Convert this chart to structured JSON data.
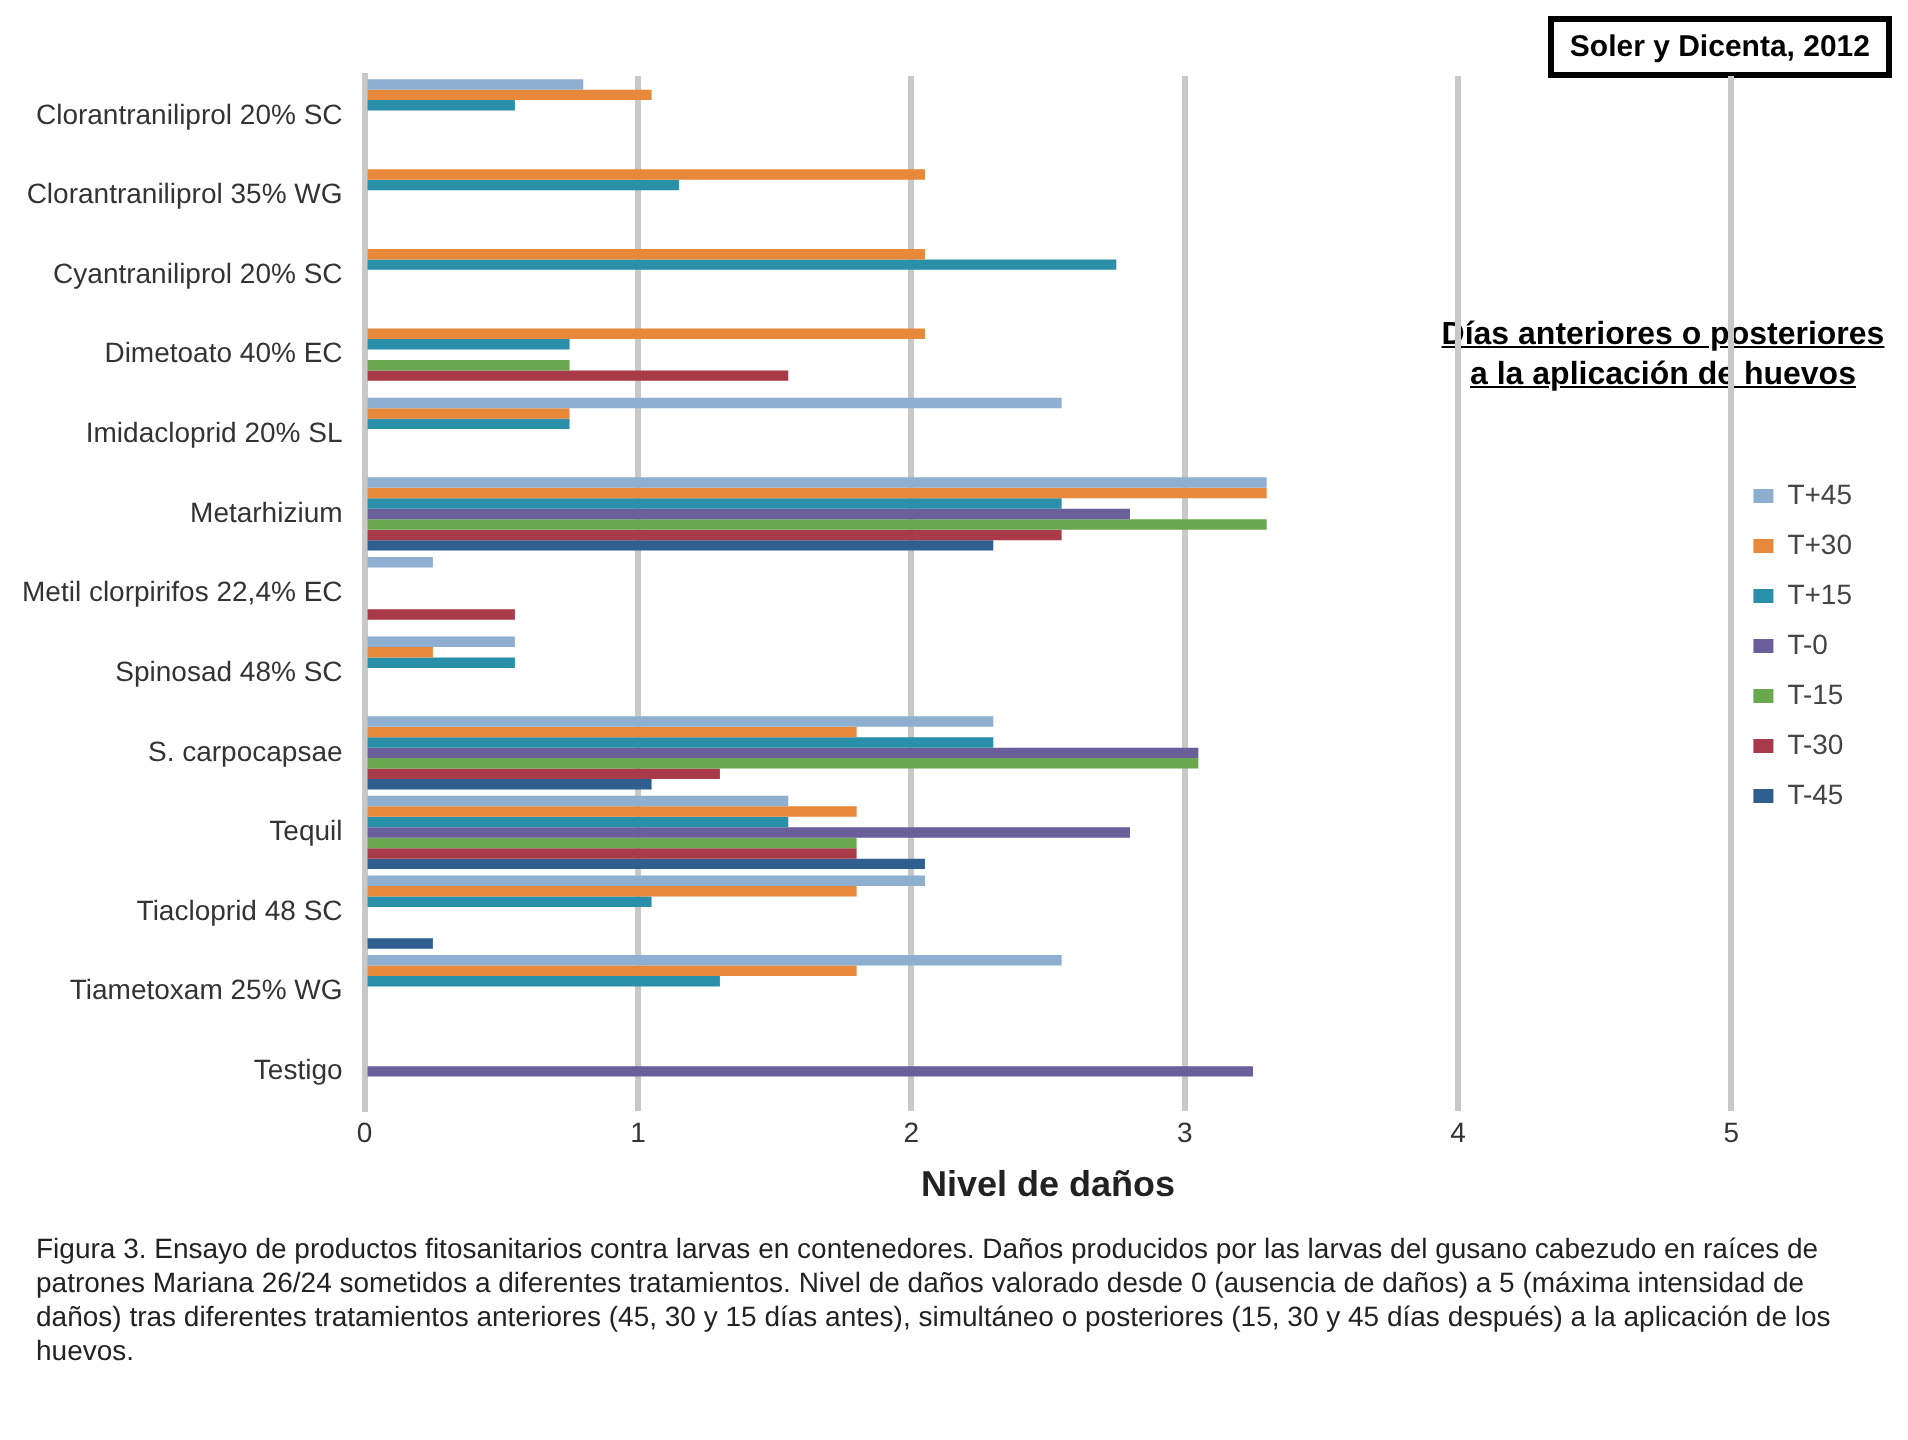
{
  "chart_data": {
    "type": "bar",
    "orientation": "horizontal",
    "xlabel": "Nivel de daños",
    "legend_title": "Días anteriores o posteriores a la aplicación de huevos",
    "legend": "right",
    "grid": "x",
    "xlim": [
      0,
      5
    ],
    "xticks": [
      0,
      1,
      2,
      3,
      4,
      5
    ],
    "categories": [
      "Clorantraniliprol 20% SC",
      "Clorantraniliprol 35% WG",
      "Cyantraniliprol 20% SC",
      "Dimetoato 40% EC",
      "Imidacloprid 20% SL",
      "Metarhizium",
      "Metil clorpirifos 22,4% EC",
      "Spinosad 48% SC",
      "S. carpocapsae",
      "Tequil",
      "Tiacloprid 48 SC",
      "Tiametoxam 25% WG",
      "Testigo"
    ],
    "series": [
      {
        "name": "T+45",
        "color": "#8fafd0",
        "values": [
          0.8,
          null,
          null,
          null,
          2.55,
          3.3,
          0.25,
          0.55,
          2.3,
          1.55,
          2.05,
          2.55,
          null
        ]
      },
      {
        "name": "T+30",
        "color": "#e8883a",
        "values": [
          1.05,
          2.05,
          2.05,
          2.05,
          0.75,
          3.3,
          null,
          0.25,
          1.8,
          1.8,
          1.8,
          1.8,
          null
        ]
      },
      {
        "name": "T+15",
        "color": "#2a8fa8",
        "values": [
          0.55,
          1.15,
          2.75,
          0.75,
          0.75,
          2.55,
          null,
          0.55,
          2.3,
          1.55,
          1.05,
          1.3,
          null
        ]
      },
      {
        "name": "T-0",
        "color": "#6a5f9a",
        "values": [
          null,
          null,
          null,
          null,
          null,
          2.8,
          null,
          null,
          3.05,
          2.8,
          null,
          null,
          3.25
        ]
      },
      {
        "name": "T-15",
        "color": "#6aa84f",
        "values": [
          null,
          null,
          null,
          0.75,
          null,
          3.3,
          null,
          null,
          3.05,
          1.8,
          null,
          null,
          null
        ]
      },
      {
        "name": "T-30",
        "color": "#a83a4a",
        "values": [
          null,
          null,
          null,
          1.55,
          null,
          2.55,
          0.55,
          null,
          1.3,
          1.8,
          null,
          null,
          null
        ]
      },
      {
        "name": "T-45",
        "color": "#2f5f8f",
        "values": [
          null,
          null,
          null,
          null,
          null,
          2.3,
          null,
          null,
          1.05,
          2.05,
          0.25,
          null,
          null
        ]
      }
    ],
    "annotations": [
      "Soler y Dicenta, 2012",
      "Figura 3. Ensayo de productos fitosanitarios contra larvas en contenedores. Daños producidos por las larvas del gusano cabezudo en raíces de patrones Mariana 26/24 sometidos a diferentes tratamientos. Nivel de daños valorado desde 0 (ausencia de daños) a 5 (máxima intensidad de daños) tras diferentes tratamientos anteriores (45, 30 y 15 días antes), simultáneo o posteriores (15, 30 y 45 días después) a la aplicación de los huevos."
    ]
  }
}
